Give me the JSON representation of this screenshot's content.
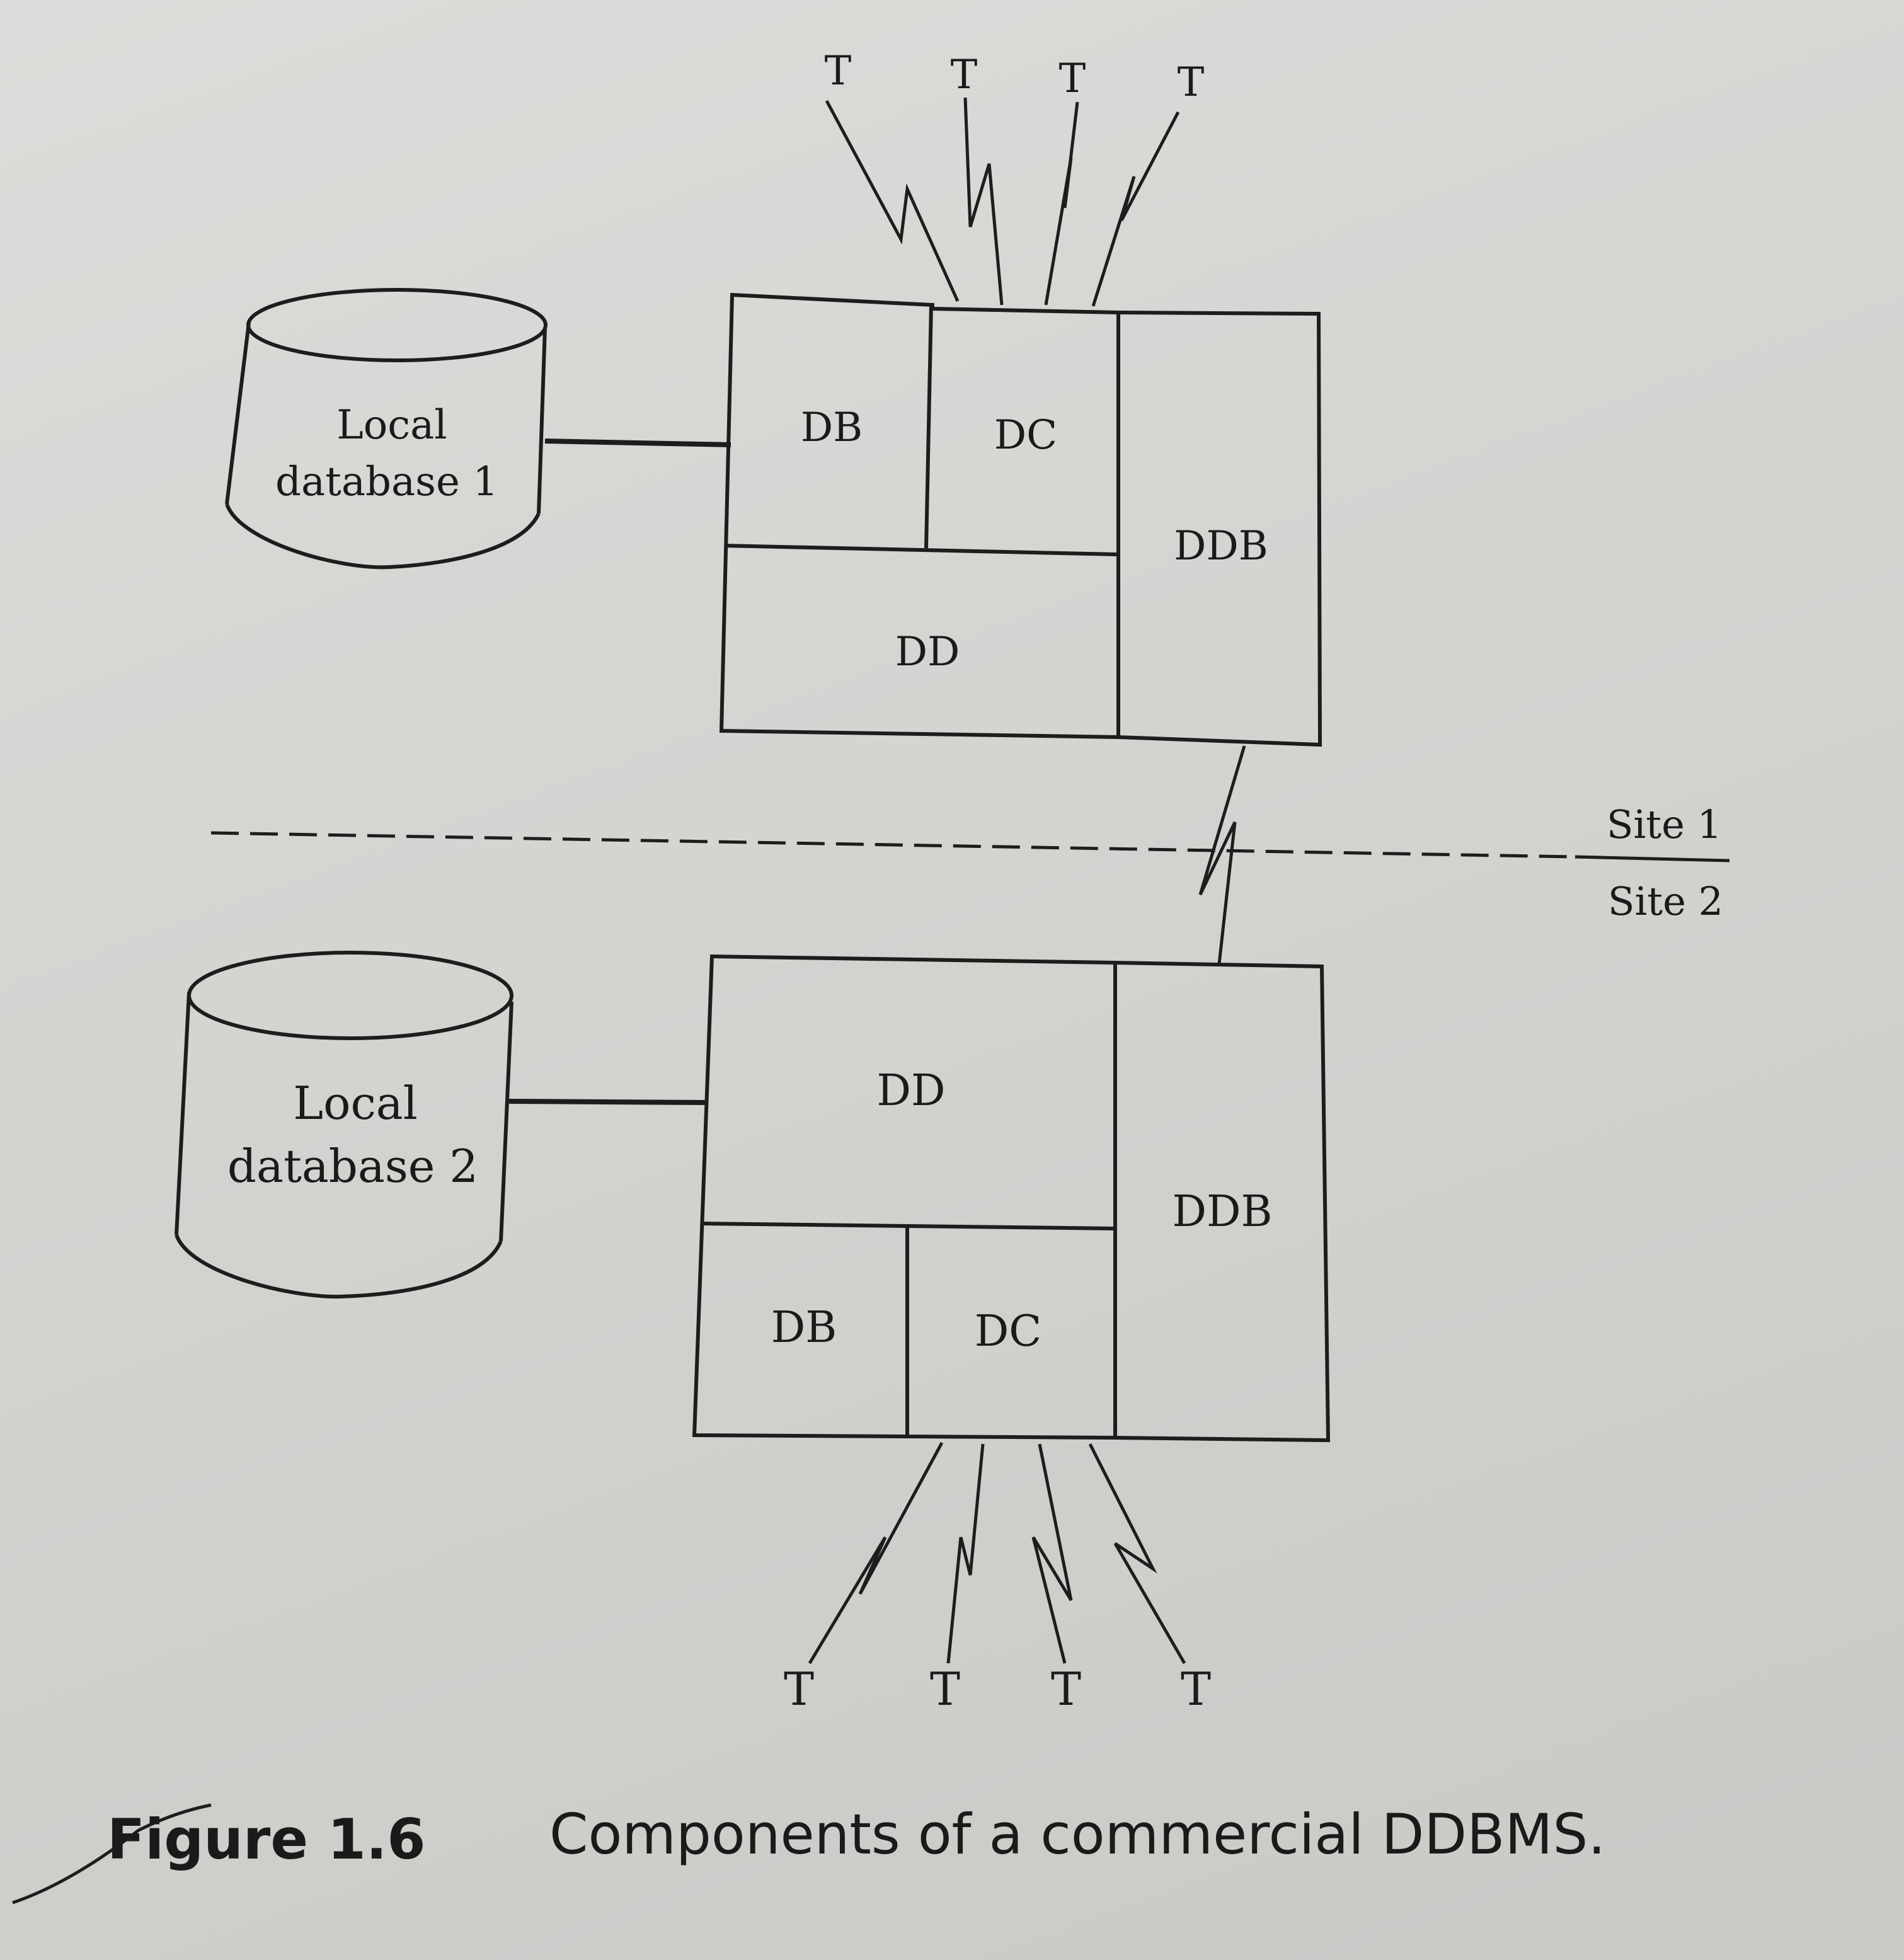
{
  "diagram": {
    "terminal_label": "T",
    "site1": {
      "database_label_line1": "Local",
      "database_label_line2": "database 1",
      "components": {
        "db": "DB",
        "dc": "DC",
        "dd": "DD",
        "ddb": "DDB"
      }
    },
    "site2": {
      "database_label_line1": "Local",
      "database_label_line2": "database 2",
      "components": {
        "db": "DB",
        "dc": "DC",
        "dd": "DD",
        "ddb": "DDB"
      }
    },
    "site_divider": {
      "upper_label": "Site 1",
      "lower_label": "Site 2"
    }
  },
  "caption": {
    "figure_label": "Figure 1.6",
    "text": "Components of a commercial DDBMS."
  }
}
